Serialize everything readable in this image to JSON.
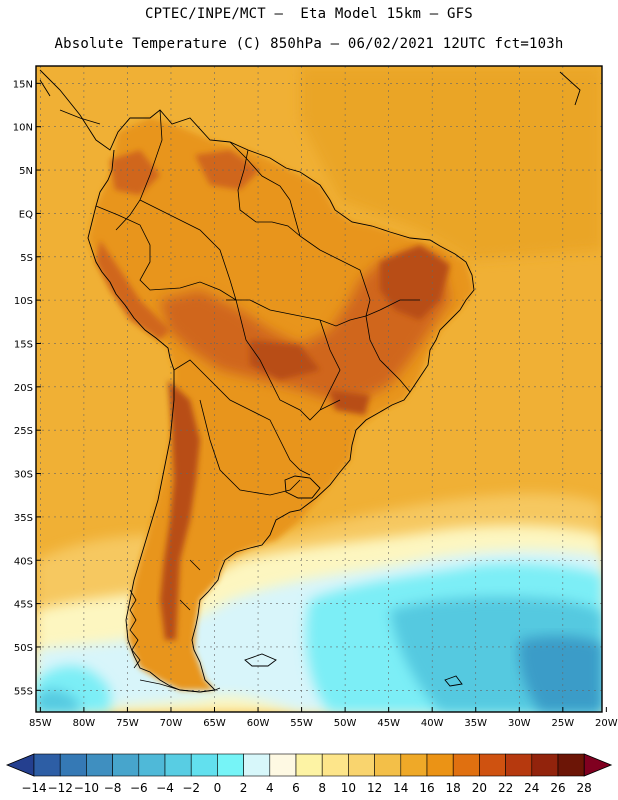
{
  "header": {
    "line1": "CPTEC/INPE/MCT –  Eta Model 15km – GFS",
    "line2": "Absolute Temperature (C) 850hPa – 06/02/2021 12UTC fct=103h"
  },
  "map": {
    "lat_labels": [
      "15N",
      "10N",
      "5N",
      "EQ",
      "5S",
      "10S",
      "15S",
      "20S",
      "25S",
      "30S",
      "35S",
      "40S",
      "45S",
      "50S",
      "55S"
    ],
    "lon_labels": [
      "85W",
      "80W",
      "75W",
      "70W",
      "65W",
      "60W",
      "55W",
      "50W",
      "45W",
      "40W",
      "35W",
      "30W",
      "25W",
      "20W"
    ],
    "lat_range": [
      17,
      -57.5
    ],
    "lon_range": [
      -85.5,
      -20.5
    ]
  },
  "colorbar": {
    "labels": [
      "-14",
      "-12",
      "-10",
      "-8",
      "-6",
      "-4",
      "-2",
      "0",
      "2",
      "4",
      "6",
      "8",
      "10",
      "12",
      "14",
      "16",
      "18",
      "20",
      "22",
      "24",
      "26",
      "28"
    ],
    "colors": [
      "#243f8f",
      "#2d5ea5",
      "#3579b5",
      "#3f8fc0",
      "#47a5cc",
      "#4fb9d8",
      "#58cde3",
      "#62e0ee",
      "#76f4f7",
      "#d7f7fa",
      "#fef9e3",
      "#fdf3a4",
      "#fde58a",
      "#f9d46e",
      "#f3bf48",
      "#efa928",
      "#eb9315",
      "#e07010",
      "#cf5210",
      "#b6390e",
      "#92230c",
      "#6c1506",
      "#800020"
    ]
  },
  "field": {
    "ocean_atlantic_north": "#eaa526",
    "ocean_mid": "#f0b035",
    "ocean_south_warm": "#f6c860",
    "land_base": "#e8951a",
    "land_hot": "#d0661a",
    "land_very_hot": "#b84e14",
    "cold_1": "#fdf6c0",
    "cold_2": "#d8f5fa",
    "cold_3": "#7ceef6",
    "cold_4": "#55c9e0",
    "cold_5": "#3b9cc8",
    "cold_6": "#2b6bb0",
    "grid": "#666666"
  }
}
